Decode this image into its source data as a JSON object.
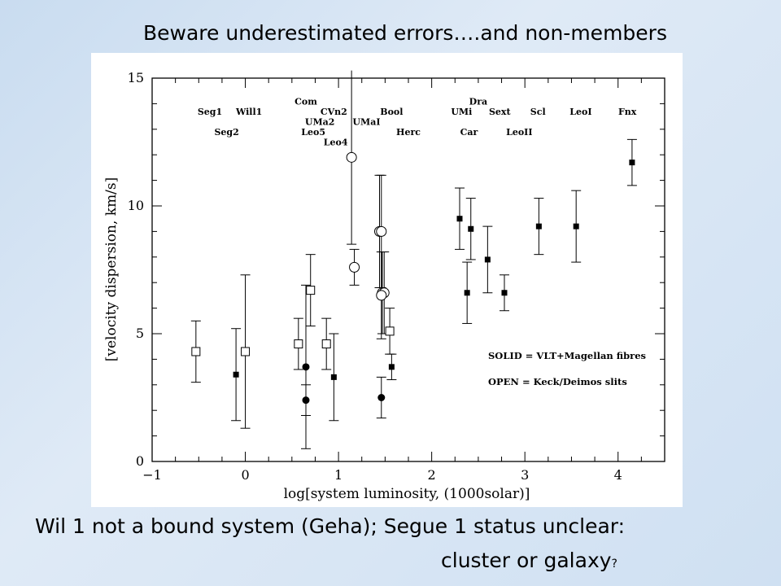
{
  "slide": {
    "title": "Beware underestimated errors….and non-members",
    "caption_line1": "Wil 1 not a bound system (Geha); Segue 1 status unclear:",
    "caption_line2": "cluster or galaxy",
    "caption_mark": "?"
  },
  "chart_data": {
    "type": "scatter",
    "title": "",
    "xlabel": "log[system luminosity, (1000solar)]",
    "ylabel": "[velocity dispersion, km/s]",
    "xlim": [
      -1,
      4.5
    ],
    "ylim": [
      0,
      15
    ],
    "xticks": [
      -1,
      0,
      1,
      2,
      3,
      4
    ],
    "yticks": [
      0,
      5,
      10,
      15
    ],
    "grid": false,
    "legend": {
      "placement": "lower-right",
      "entries": [
        "SOLID = VLT+Magellan fibres",
        "OPEN = Keck/Deimos slits"
      ]
    },
    "series": [
      {
        "name": "SOLID = VLT+Magellan fibres",
        "marker": "filled-square",
        "points": [
          {
            "x": -0.1,
            "y": 3.4,
            "ylo": 1.6,
            "yhi": 5.2
          },
          {
            "x": 0.95,
            "y": 3.3,
            "ylo": 1.6,
            "yhi": 5.0
          },
          {
            "x": 1.57,
            "y": 3.7,
            "ylo": 3.2,
            "yhi": 4.2
          },
          {
            "x": 2.3,
            "y": 9.5,
            "ylo": 8.3,
            "yhi": 10.7
          },
          {
            "x": 2.38,
            "y": 6.6,
            "ylo": 5.4,
            "yhi": 7.8
          },
          {
            "x": 2.42,
            "y": 9.1,
            "ylo": 7.9,
            "yhi": 10.3
          },
          {
            "x": 2.6,
            "y": 7.9,
            "ylo": 6.6,
            "yhi": 9.2
          },
          {
            "x": 2.78,
            "y": 6.6,
            "ylo": 5.9,
            "yhi": 7.3
          },
          {
            "x": 3.15,
            "y": 9.2,
            "ylo": 8.1,
            "yhi": 10.3
          },
          {
            "x": 3.55,
            "y": 9.2,
            "ylo": 7.8,
            "yhi": 10.6
          },
          {
            "x": 4.15,
            "y": 11.7,
            "ylo": 10.8,
            "yhi": 12.6
          }
        ]
      },
      {
        "name": "",
        "marker": "filled-circle",
        "points": [
          {
            "x": 0.65,
            "y": 3.7,
            "ylo": 0.5,
            "yhi": 6.9
          },
          {
            "x": 0.65,
            "y": 2.4,
            "ylo": 1.8,
            "yhi": 3.0
          },
          {
            "x": 1.46,
            "y": 2.5,
            "ylo": 1.7,
            "yhi": 3.3
          }
        ]
      },
      {
        "name": "OPEN = Keck/Deimos slits",
        "marker": "open-square",
        "points": [
          {
            "x": -0.53,
            "y": 4.3,
            "ylo": 3.1,
            "yhi": 5.5
          },
          {
            "x": 0.0,
            "y": 4.3,
            "ylo": 1.3,
            "yhi": 7.3
          },
          {
            "x": 0.57,
            "y": 4.6,
            "ylo": 3.6,
            "yhi": 5.6
          },
          {
            "x": 0.7,
            "y": 6.7,
            "ylo": 5.3,
            "yhi": 8.1
          },
          {
            "x": 0.87,
            "y": 4.6,
            "ylo": 3.6,
            "yhi": 5.6
          },
          {
            "x": 1.55,
            "y": 5.1,
            "ylo": 4.2,
            "yhi": 6.0
          }
        ]
      },
      {
        "name": "",
        "marker": "open-circle",
        "points": [
          {
            "x": 1.14,
            "y": 11.9,
            "ylo": 8.5,
            "yhi": 15.3
          },
          {
            "x": 1.17,
            "y": 7.6,
            "ylo": 6.9,
            "yhi": 8.3
          },
          {
            "x": 1.44,
            "y": 9.0,
            "ylo": 6.8,
            "yhi": 11.2
          },
          {
            "x": 1.46,
            "y": 9.0,
            "ylo": 6.8,
            "yhi": 11.2
          },
          {
            "x": 1.47,
            "y": 6.6,
            "ylo": 5.0,
            "yhi": 8.2
          },
          {
            "x": 1.49,
            "y": 6.6,
            "ylo": 5.0,
            "yhi": 8.2
          },
          {
            "x": 1.46,
            "y": 6.5,
            "ylo": 4.8,
            "yhi": 8.2
          }
        ]
      }
    ],
    "annotations": [
      {
        "text": "Com",
        "x": 0.65,
        "y": 14.1
      },
      {
        "text": "Dra",
        "x": 2.5,
        "y": 14.1
      },
      {
        "text": "Seg1",
        "x": -0.38,
        "y": 13.7
      },
      {
        "text": "Will1",
        "x": 0.04,
        "y": 13.7
      },
      {
        "text": "CVn2",
        "x": 0.95,
        "y": 13.7
      },
      {
        "text": "Bool",
        "x": 1.57,
        "y": 13.7
      },
      {
        "text": "UMi",
        "x": 2.32,
        "y": 13.7
      },
      {
        "text": "Sext",
        "x": 2.73,
        "y": 13.7
      },
      {
        "text": "Scl",
        "x": 3.14,
        "y": 13.7
      },
      {
        "text": "LeoI",
        "x": 3.6,
        "y": 13.7
      },
      {
        "text": "Fnx",
        "x": 4.1,
        "y": 13.7
      },
      {
        "text": "UMa2",
        "x": 0.8,
        "y": 13.3
      },
      {
        "text": "UMaI",
        "x": 1.3,
        "y": 13.3
      },
      {
        "text": "Seg2",
        "x": -0.2,
        "y": 12.9
      },
      {
        "text": "Leo5",
        "x": 0.73,
        "y": 12.9
      },
      {
        "text": "Herc",
        "x": 1.75,
        "y": 12.9
      },
      {
        "text": "Car",
        "x": 2.4,
        "y": 12.9
      },
      {
        "text": "LeoII",
        "x": 2.94,
        "y": 12.9
      },
      {
        "text": "Leo4",
        "x": 0.97,
        "y": 12.5
      }
    ]
  }
}
